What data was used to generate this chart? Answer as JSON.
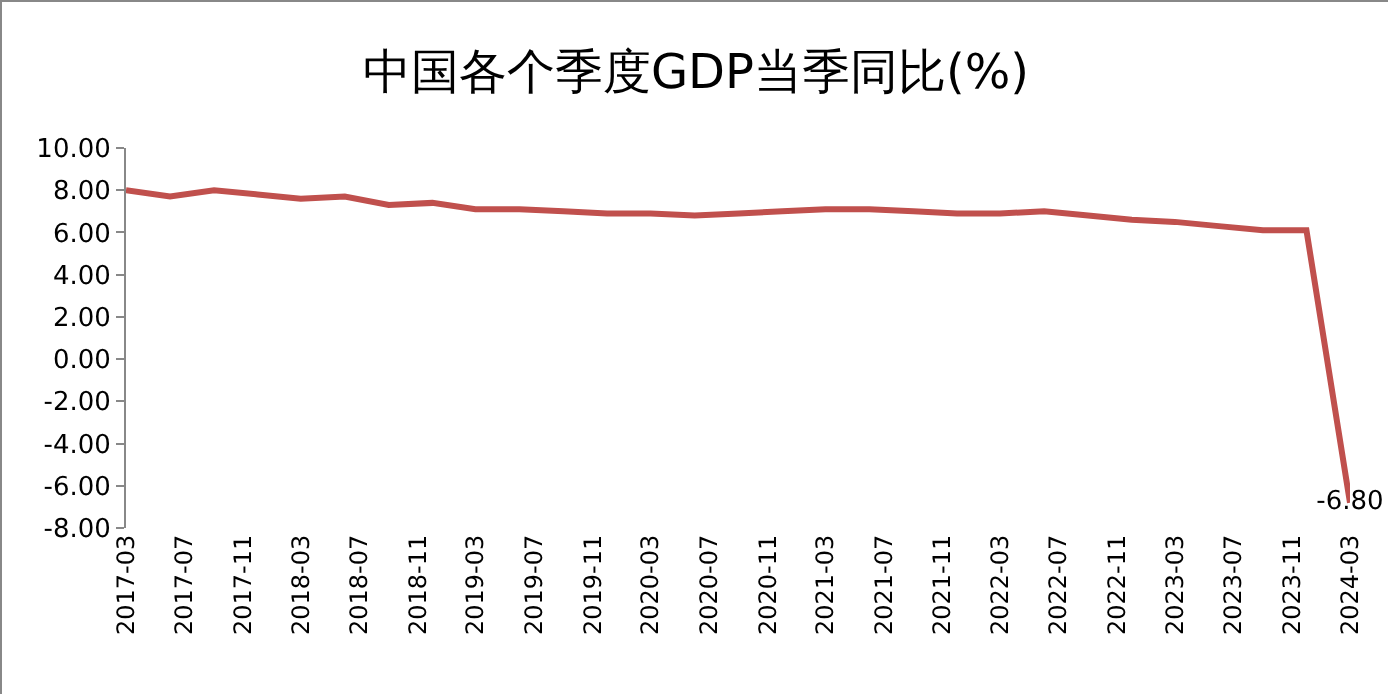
{
  "chart_data": {
    "type": "line",
    "title": "中国各个季度GDP当季同比(%)",
    "x": [
      "2017-03",
      "2017-06",
      "2017-09",
      "2017-12",
      "2018-03",
      "2018-06",
      "2018-09",
      "2018-12",
      "2019-03",
      "2019-06",
      "2019-09",
      "2019-12",
      "2020-03",
      "2020-06",
      "2020-09",
      "2020-12",
      "2021-03",
      "2021-06",
      "2021-09",
      "2021-12",
      "2022-03",
      "2022-06",
      "2022-09",
      "2022-12",
      "2023-03",
      "2023-06",
      "2023-09",
      "2023-12",
      "2024-03"
    ],
    "series": [
      {
        "color": "#c0504d",
        "values": [
          8.0,
          7.7,
          8.0,
          7.8,
          7.6,
          7.7,
          7.3,
          7.4,
          7.1,
          7.1,
          7.0,
          6.9,
          6.9,
          6.8,
          6.9,
          7.0,
          7.1,
          7.1,
          7.0,
          6.9,
          6.9,
          7.0,
          6.8,
          6.6,
          6.5,
          6.3,
          6.1,
          6.1,
          -6.8
        ],
        "value_labels": [
          null,
          null,
          null,
          null,
          null,
          null,
          null,
          null,
          null,
          null,
          null,
          null,
          null,
          null,
          null,
          null,
          null,
          null,
          null,
          null,
          null,
          null,
          null,
          null,
          null,
          null,
          null,
          null,
          "-6.80"
        ]
      }
    ],
    "xlim": [
      "2017-03",
      "2024-03"
    ],
    "xticks": [
      "2017-03",
      "2017-07",
      "2017-11",
      "2018-03",
      "2018-07",
      "2018-11",
      "2019-03",
      "2019-07",
      "2019-11",
      "2020-03",
      "2020-07",
      "2020-11",
      "2021-03",
      "2021-07",
      "2021-11",
      "2022-03",
      "2022-07",
      "2022-11",
      "2023-03",
      "2023-07",
      "2023-11",
      "2024-03"
    ],
    "ylim": [
      -8,
      10
    ],
    "yticks": [
      {
        "value": 10,
        "label": "10.00"
      },
      {
        "value": 8,
        "label": "8.00"
      },
      {
        "value": 6,
        "label": "6.00"
      },
      {
        "value": 4,
        "label": "4.00"
      },
      {
        "value": 2,
        "label": "2.00"
      },
      {
        "value": 0,
        "label": "0.00"
      },
      {
        "value": -2,
        "label": "-2.00"
      },
      {
        "value": -4,
        "label": "-4.00"
      },
      {
        "value": -6,
        "label": "-6.00"
      },
      {
        "value": -8,
        "label": "-8.00"
      }
    ],
    "marker": "none",
    "line_style": "solid"
  }
}
